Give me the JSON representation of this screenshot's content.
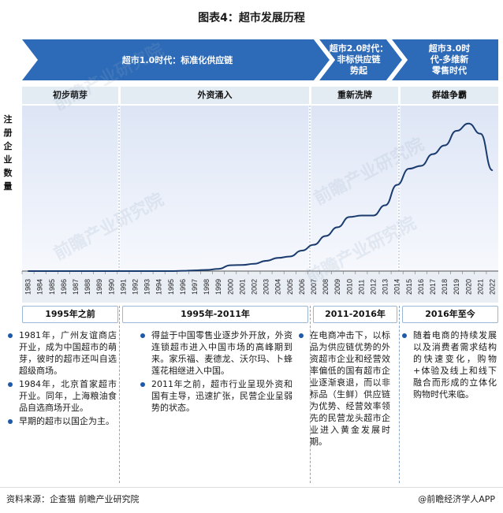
{
  "title": "图表4：超市发展历程",
  "eras": [
    {
      "text": "超市1.0时代：标准化供应链"
    },
    {
      "text_lines": [
        "超市2.0时代：",
        "非标供应链",
        "势起"
      ]
    },
    {
      "text_lines": [
        "超市3.0时",
        "代-多维新",
        "零售时代"
      ]
    }
  ],
  "phases": [
    "初步萌芽",
    "外资涌入",
    "重新洗牌",
    "群雄争霸"
  ],
  "y_axis_label": [
    "注",
    "册",
    "企",
    "业",
    "数",
    "量"
  ],
  "chart_data": {
    "type": "line",
    "x": [
      "1983",
      "1984",
      "1985",
      "1986",
      "1987",
      "1988",
      "1989",
      "1990",
      "1991",
      "1992",
      "1993",
      "1994",
      "1995",
      "1996",
      "1997",
      "1998",
      "1999",
      "2000",
      "2001",
      "2002",
      "2003",
      "2004",
      "2005",
      "2006",
      "2007",
      "2008",
      "2009",
      "2010",
      "2011",
      "2012",
      "2013",
      "2014",
      "2015",
      "2016",
      "2017",
      "2018",
      "2019",
      "2020",
      "2021",
      "2022"
    ],
    "series": [
      {
        "values": [
          0,
          0,
          0,
          0,
          0,
          0,
          0,
          0,
          0,
          0,
          0,
          0,
          0,
          0.2,
          0.5,
          0.8,
          1.5,
          4,
          4.2,
          5,
          7,
          9,
          10,
          14,
          18,
          24,
          30,
          37,
          38,
          38,
          45,
          59,
          70,
          72,
          80,
          86,
          96,
          101,
          94,
          69
        ]
      }
    ],
    "ylim": [
      0,
      110
    ],
    "grid": false,
    "colors": {
      "line": "#1a3b6e",
      "fill_top": "#dde5f5",
      "fill_bottom": "#f6f8fd"
    }
  },
  "periods": [
    "1995年之前",
    "1995年-2011年",
    "2011-2016年",
    "2016年至今"
  ],
  "descriptions": [
    [
      "1981年，广州友谊商店开业，成为中国超市的萌芽，彼时的超市还叫自选超级商场。",
      "1984年，北京首家超市开业。同年，上海粮油食品自选商场开业。",
      "早期的超市以国企为主。"
    ],
    [
      "得益于中国零售业逐步外开放，外资连锁超市进入中国市场的高峰期到来。家乐福、麦德龙、沃尔玛、卜蜂莲花相继进入中国。",
      "2011年之前，超市行业呈现外资和国有主导，迅速扩张，民营企业呈弱势的状态。"
    ],
    [
      "在电商冲击下，以标品为供应链优势的外资超市企业和经营效率偏低的国有超市企业逐渐衰退，而以非标品（生鲜）供应链为优势、经营效率领先的民营龙头超市企业进入黄金发展时期。"
    ],
    [
      "随着电商的持续发展以及消费者需求结构的快速变化，购物+体验及线上和线下融合而形成的立体化购物时代来临。"
    ]
  ],
  "footer": {
    "source": "资料来源：企查猫 前瞻产业研究院",
    "brand": "@前瞻经济学人APP"
  },
  "watermark": "前瞻产业研究院"
}
